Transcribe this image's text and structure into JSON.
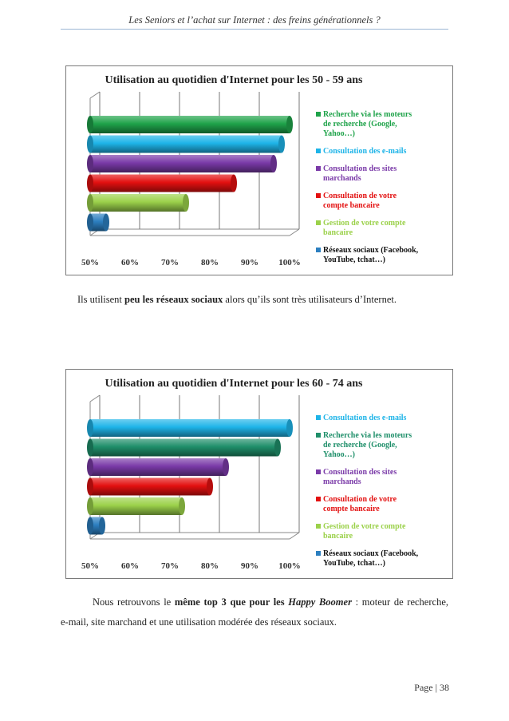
{
  "document": {
    "header": "Les Seniors et l’achat sur Internet : des freins générationnels ?",
    "paragraph1": {
      "before": "Ils utilisent ",
      "bold": "peu les réseaux sociaux",
      "after": " alors qu’ils sont très utilisateurs d’Internet."
    },
    "paragraph2": {
      "before": "Nous retrouvons le ",
      "bold": "même top 3 que pour les ",
      "bold_italic": "Happy Boomer",
      "after_line1": " : moteur de recherche,",
      "line2": "e-mail, site marchand et une utilisation modérée des réseaux sociaux."
    },
    "footer": "Page | 38"
  },
  "chart_data": [
    {
      "type": "bar",
      "orientation": "horizontal",
      "title": "Utilisation au quotidien d'Internet pour les 50 - 59 ans",
      "xlim": [
        50,
        100
      ],
      "ticks": [
        "50%",
        "60%",
        "70%",
        "80%",
        "90%",
        "100%"
      ],
      "series": [
        {
          "name": "Recherche via les moteurs de recherche (Google, Yahoo…)",
          "value": 100,
          "color": "#1fa34a"
        },
        {
          "name": "Consultation des e-mails",
          "value": 98,
          "color": "#1eb4e8"
        },
        {
          "name": "Consultation des sites marchands",
          "value": 96,
          "color": "#7a3aa8"
        },
        {
          "name": "Consultation de votre compte bancaire",
          "value": 86,
          "color": "#e31010"
        },
        {
          "name": "Gestion de votre compte bancaire",
          "value": 74,
          "color": "#9bd14a"
        },
        {
          "name": "Réseaux sociaux (Facebook, YouTube, tchat…)",
          "value": 54,
          "color": "#2c7fc0"
        }
      ],
      "legend_position": "right",
      "grid": true
    },
    {
      "type": "bar",
      "orientation": "horizontal",
      "title": "Utilisation au quotidien d'Internet pour les 60 - 74 ans",
      "xlim": [
        50,
        100
      ],
      "ticks": [
        "50%",
        "60%",
        "70%",
        "80%",
        "90%",
        "100%"
      ],
      "series": [
        {
          "name": "Consultation des e-mails",
          "value": 100,
          "color": "#1eb4e8"
        },
        {
          "name": "Recherche via les moteurs de recherche (Google, Yahoo…)",
          "value": 97,
          "color": "#1f8f6a"
        },
        {
          "name": "Consultation des sites marchands",
          "value": 84,
          "color": "#7a3aa8"
        },
        {
          "name": "Consultation de votre compte bancaire",
          "value": 80,
          "color": "#e31010"
        },
        {
          "name": "Gestion de votre compte bancaire",
          "value": 73,
          "color": "#9bd14a"
        },
        {
          "name": "Réseaux sociaux (Facebook, YouTube, tchat…)",
          "value": 53,
          "color": "#2c7fc0"
        }
      ],
      "legend_position": "right",
      "grid": true
    }
  ]
}
